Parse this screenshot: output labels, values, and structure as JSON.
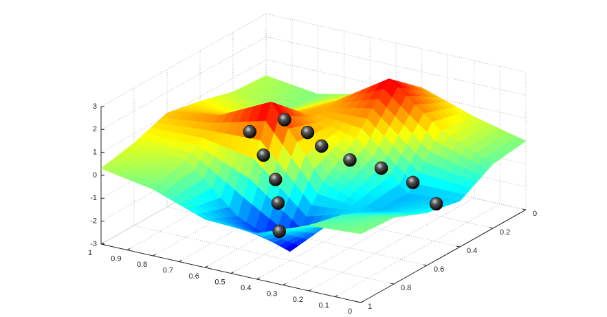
{
  "chart_data": {
    "type": "surface",
    "colormap": "jet",
    "grid": true,
    "xlim": [
      0,
      1
    ],
    "ylim": [
      0,
      1
    ],
    "zlim": [
      -3,
      3
    ],
    "xticks": [
      0,
      0.1,
      0.2,
      0.3,
      0.4,
      0.5,
      0.6,
      0.7,
      0.8,
      0.9,
      1
    ],
    "yticks": [
      0,
      0.2,
      0.4,
      0.6,
      0.8,
      1
    ],
    "zticks": [
      -3,
      -2,
      -1,
      0,
      1,
      2,
      3
    ],
    "surface": {
      "x": [
        0,
        0.2,
        0.4,
        0.6,
        0.8,
        1
      ],
      "y": [
        0,
        0.2,
        0.4,
        0.6,
        0.8,
        1
      ],
      "z": [
        [
          0.0,
          0.55,
          1.3,
          0.5,
          0.0,
          0.3
        ],
        [
          -0.2,
          0.75,
          2.5,
          1.05,
          0.1,
          0.4
        ],
        [
          -1.0,
          -1.2,
          0.7,
          1.3,
          0.6,
          0.8
        ],
        [
          -0.7,
          -1.15,
          -0.4,
          2.6,
          1.5,
          1.1
        ],
        [
          -0.1,
          -0.5,
          -2.6,
          -1.6,
          0.35,
          0.6
        ],
        [
          0.0,
          -0.15,
          -1.0,
          -0.9,
          -0.1,
          0.3
        ]
      ]
    },
    "points": {
      "color": "#000000",
      "x": [
        0.58,
        0.54,
        0.5,
        0.49,
        0.46,
        0.51,
        0.44,
        0.38,
        0.29,
        0.22,
        0.13,
        0.04
      ],
      "y": [
        0.76,
        0.74,
        0.73,
        0.73,
        0.77,
        0.66,
        0.63,
        0.64,
        0.61,
        0.53,
        0.48,
        0.48
      ],
      "z": [
        2.0,
        1.0,
        0.0,
        -1.0,
        -2.0,
        2.3,
        1.8,
        1.4,
        0.9,
        0.4,
        -0.2,
        -0.9
      ]
    }
  }
}
